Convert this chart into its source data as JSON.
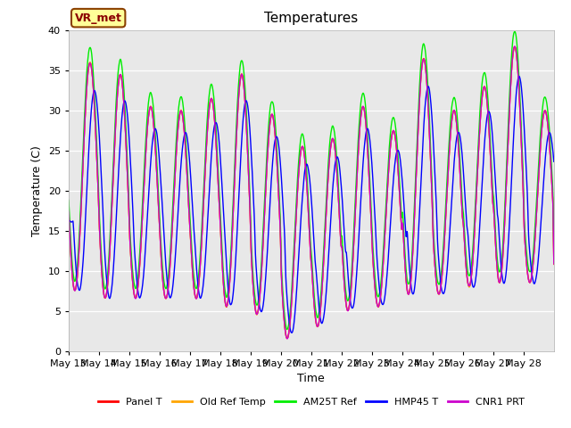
{
  "title": "Temperatures",
  "xlabel": "Time",
  "ylabel": "Temperature (C)",
  "ylim": [
    0,
    40
  ],
  "fig_bg_color": "#ffffff",
  "plot_bg_color": "#e8e8e8",
  "annotation_text": "VR_met",
  "annotation_color": "#8b0000",
  "annotation_bg": "#ffff99",
  "annotation_border": "#8b4000",
  "legend_labels": [
    "Panel T",
    "Old Ref Temp",
    "AM25T Ref",
    "HMP45 T",
    "CNR1 PRT"
  ],
  "series_colors": [
    "#ff0000",
    "#ffa500",
    "#00ee00",
    "#0000ff",
    "#cc00cc"
  ],
  "n_days": 16,
  "tick_labels": [
    "May 13",
    "May 14",
    "May 15",
    "May 16",
    "May 17",
    "May 18",
    "May 19",
    "May 20",
    "May 21",
    "May 22",
    "May 23",
    "May 24",
    "May 25",
    "May 26",
    "May 27",
    "May 28"
  ],
  "linewidth": 1.0,
  "daily_mins": [
    7.5,
    6.5,
    6.5,
    6.5,
    6.5,
    5.5,
    4.5,
    1.5,
    3.0,
    5.0,
    5.5,
    7.0,
    7.0,
    8.0,
    8.5,
    8.5
  ],
  "daily_maxs": [
    36.0,
    34.5,
    30.5,
    30.0,
    31.5,
    34.5,
    29.5,
    25.5,
    26.5,
    30.5,
    27.5,
    36.5,
    30.0,
    33.0,
    38.0,
    30.0
  ]
}
